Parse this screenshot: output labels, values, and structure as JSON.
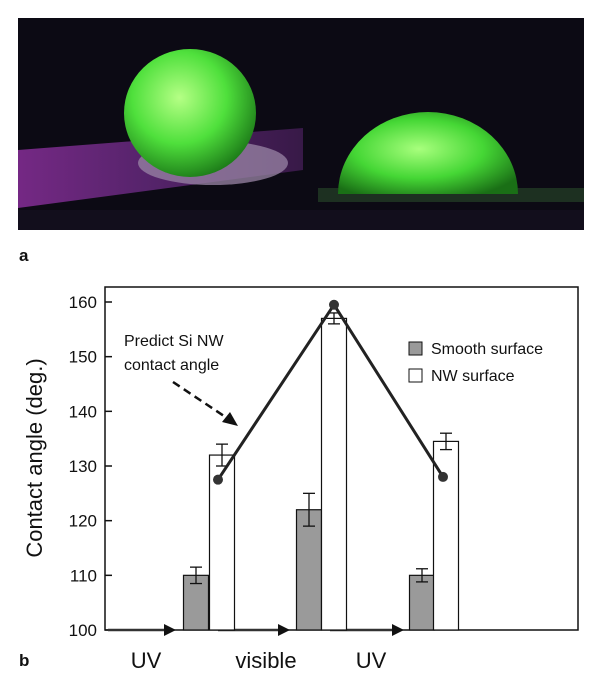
{
  "panel_a": {
    "label": "a"
  },
  "panel_b": {
    "label": "b"
  },
  "chart_data": {
    "type": "bar",
    "title": "",
    "xlabel": "",
    "ylabel": "Contact angle (deg.)",
    "ylim": [
      100,
      160
    ],
    "yticks": [
      100,
      110,
      120,
      130,
      140,
      150,
      160
    ],
    "categories": [
      "UV",
      "visible",
      "UV"
    ],
    "series": [
      {
        "name": "Smooth surface",
        "values": [
          110,
          122,
          110
        ],
        "errors": [
          1.5,
          3,
          1.2
        ],
        "color": "#9a9a9a"
      },
      {
        "name": "NW surface",
        "values": [
          132,
          157,
          134.5
        ],
        "errors": [
          2,
          1,
          1.5
        ],
        "color": "#ffffff"
      }
    ],
    "prediction_line": {
      "values": [
        127.5,
        159.5,
        128
      ]
    },
    "annotation": {
      "lines": [
        "Predict Si NW",
        "contact angle"
      ]
    },
    "legend_position": "top-right",
    "grid": false,
    "accent_color": "#111111"
  }
}
